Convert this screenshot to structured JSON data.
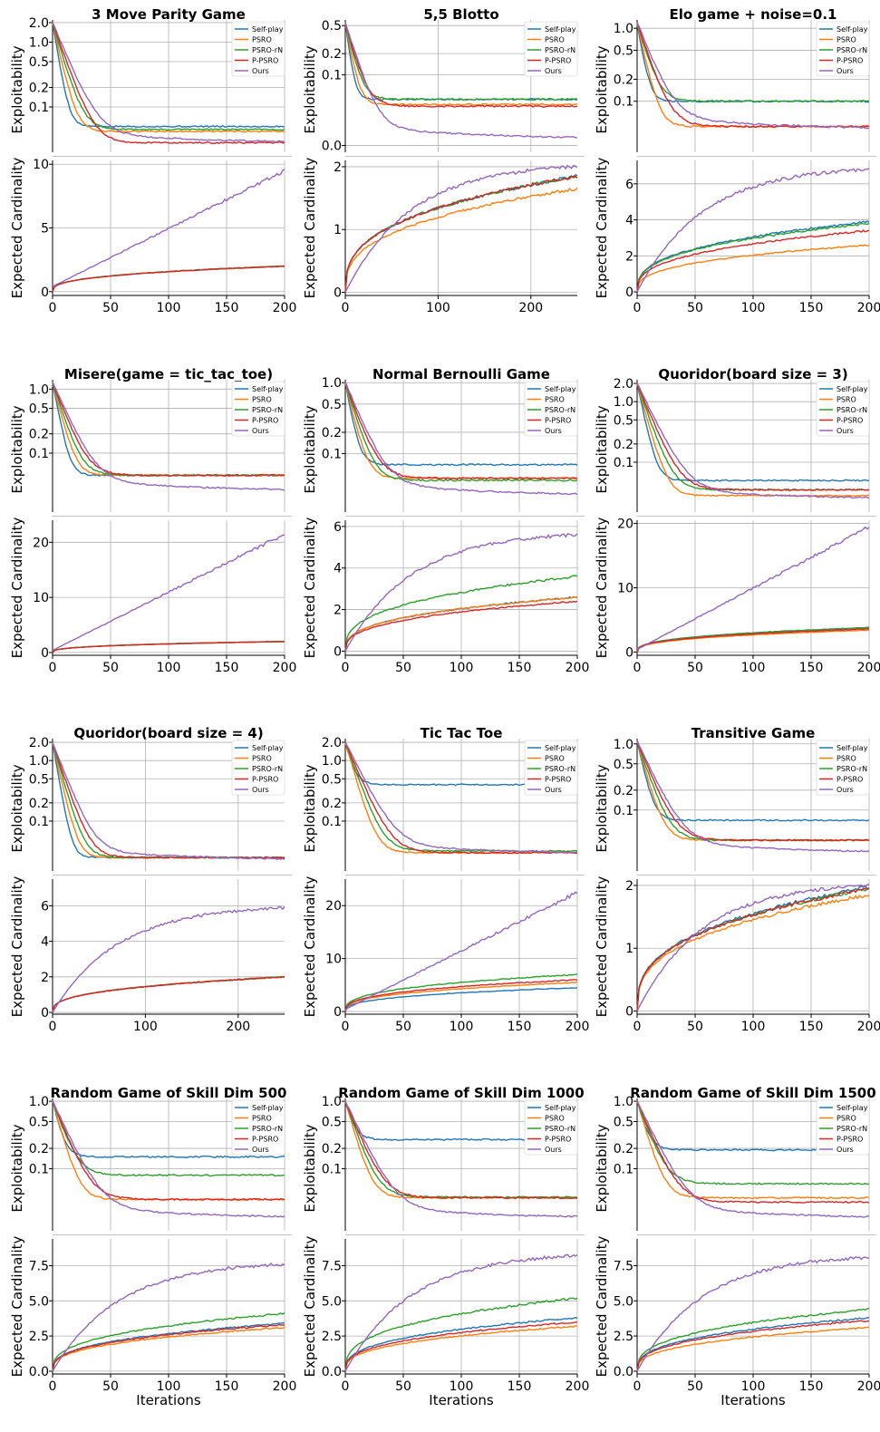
{
  "figure": {
    "x_label": "Iterations",
    "colors": {
      "Self-play": "#1f77b4",
      "PSRO": "#ff7f0e",
      "PSRO-rN": "#2ca02c",
      "P-PSRO": "#d62728",
      "Ours": "#9467bd"
    },
    "legend": [
      "Self-play",
      "PSRO",
      "PSRO-rN",
      "P-PSRO",
      "Ours"
    ],
    "top_ylabel": "Exploitability",
    "bottom_ylabel": "Expected Cardinality"
  },
  "chart_data": [
    {
      "type": "line",
      "title": "3 Move Parity Game",
      "xmax": 200,
      "xticks": [
        0,
        50,
        100,
        150,
        200
      ],
      "top": {
        "yticks": [
          "2.0",
          "1.0",
          "0.5",
          "0.2",
          "0.1"
        ],
        "tickvals": [
          2.0,
          1.0,
          0.5,
          0.2,
          0.1
        ],
        "ylim": [
          0.02,
          2.2
        ],
        "final": {
          "Self-play": 0.05,
          "PSRO": 0.042,
          "PSRO-rN": 0.045,
          "P-PSRO": 0.028,
          "Ours": 0.027
        }
      },
      "bottom": {
        "yticks": [
          "0",
          "5",
          "10"
        ],
        "tickvals": [
          0,
          5,
          10
        ],
        "ylim": [
          -0.3,
          10.3
        ],
        "final": {
          "Self-play": 2.0,
          "PSRO": 2.0,
          "PSRO-rN": 2.0,
          "P-PSRO": 2.0,
          "Ours": 9.5
        }
      }
    },
    {
      "type": "line",
      "title": "5,5 Blotto",
      "xmax": 250,
      "xticks": [
        0,
        100,
        200
      ],
      "top": {
        "yticks": [
          "0.5",
          "0.2",
          "0.1",
          "0.0"
        ],
        "tickvals": [
          0.5,
          0.2,
          0.1,
          0.01
        ],
        "ylim": [
          0.008,
          0.6
        ],
        "final": {
          "Self-play": 0.045,
          "PSRO": 0.038,
          "PSRO-rN": 0.045,
          "P-PSRO": 0.036,
          "Ours": 0.012
        }
      },
      "bottom": {
        "yticks": [
          "0",
          "1",
          "2"
        ],
        "tickvals": [
          0,
          1,
          2
        ],
        "ylim": [
          -0.05,
          2.1
        ],
        "final": {
          "Self-play": 1.85,
          "PSRO": 1.65,
          "PSRO-rN": 1.85,
          "P-PSRO": 1.85,
          "Ours": 2.0
        }
      }
    },
    {
      "type": "line",
      "title": "Elo game + noise=0.1",
      "xmax": 200,
      "xticks": [
        0,
        50,
        100,
        150,
        200
      ],
      "top": {
        "yticks": [
          "1.0",
          "0.5",
          "0.2",
          "0.1"
        ],
        "tickvals": [
          1.0,
          0.5,
          0.2,
          0.1
        ],
        "ylim": [
          0.02,
          1.3
        ],
        "final": {
          "Self-play": 0.1,
          "PSRO": 0.045,
          "PSRO-rN": 0.1,
          "P-PSRO": 0.045,
          "Ours": 0.04
        }
      },
      "bottom": {
        "yticks": [
          "0",
          "2",
          "4",
          "6"
        ],
        "tickvals": [
          0,
          2,
          4,
          6
        ],
        "ylim": [
          -0.2,
          7.3
        ],
        "final": {
          "Self-play": 3.9,
          "PSRO": 2.6,
          "PSRO-rN": 3.8,
          "P-PSRO": 3.4,
          "Ours": 6.8
        }
      }
    },
    {
      "type": "line",
      "title": "Misere(game = tic_tac_toe)",
      "xmax": 200,
      "xticks": [
        0,
        50,
        100,
        150,
        200
      ],
      "top": {
        "yticks": [
          "1.0",
          "0.5",
          "0.2",
          "0.1"
        ],
        "tickvals": [
          1.0,
          0.5,
          0.2,
          0.1
        ],
        "ylim": [
          0.012,
          1.4
        ],
        "final": {
          "Self-play": 0.045,
          "PSRO": 0.045,
          "PSRO-rN": 0.045,
          "P-PSRO": 0.045,
          "Ours": 0.025
        }
      },
      "bottom": {
        "yticks": [
          "0",
          "10",
          "20"
        ],
        "tickvals": [
          0,
          10,
          20
        ],
        "ylim": [
          -0.5,
          24
        ],
        "final": {
          "Self-play": 2.0,
          "PSRO": 2.0,
          "PSRO-rN": 2.0,
          "P-PSRO": 2.0,
          "Ours": 21.5
        }
      }
    },
    {
      "type": "line",
      "title": "Normal Bernoulli Game",
      "xmax": 200,
      "xticks": [
        0,
        50,
        100,
        150,
        200
      ],
      "top": {
        "yticks": [
          "1.0",
          "0.5",
          "0.2",
          "0.1"
        ],
        "tickvals": [
          1.0,
          0.5,
          0.2,
          0.1
        ],
        "ylim": [
          0.015,
          1.1
        ],
        "final": {
          "Self-play": 0.07,
          "PSRO": 0.045,
          "PSRO-rN": 0.042,
          "P-PSRO": 0.045,
          "Ours": 0.025
        }
      },
      "bottom": {
        "yticks": [
          "0",
          "2",
          "4",
          "6"
        ],
        "tickvals": [
          0,
          2,
          4,
          6
        ],
        "ylim": [
          -0.2,
          6.3
        ],
        "final": {
          "Self-play": 2.6,
          "PSRO": 2.6,
          "PSRO-rN": 3.6,
          "P-PSRO": 2.4,
          "Ours": 5.6
        }
      }
    },
    {
      "type": "line",
      "title": "Quoridor(board size = 3)",
      "xmax": 200,
      "xticks": [
        0,
        50,
        100,
        150,
        200
      ],
      "top": {
        "yticks": [
          "2.0",
          "1.0",
          "0.5",
          "0.2",
          "0.1"
        ],
        "tickvals": [
          2.0,
          1.0,
          0.5,
          0.2,
          0.1
        ],
        "ylim": [
          0.015,
          2.3
        ],
        "final": {
          "Self-play": 0.05,
          "PSRO": 0.028,
          "PSRO-rN": 0.035,
          "P-PSRO": 0.035,
          "Ours": 0.024
        }
      },
      "bottom": {
        "yticks": [
          "0",
          "10",
          "20"
        ],
        "tickvals": [
          0,
          10,
          20
        ],
        "ylim": [
          -0.5,
          20.5
        ],
        "final": {
          "Self-play": 3.8,
          "PSRO": 3.4,
          "PSRO-rN": 3.8,
          "P-PSRO": 3.6,
          "Ours": 19.5
        }
      }
    },
    {
      "type": "line",
      "title": "Quoridor(board size = 4)",
      "xmax": 250,
      "xticks": [
        0,
        100,
        200
      ],
      "top": {
        "yticks": [
          "2.0",
          "1.0",
          "0.5",
          "0.2",
          "0.1"
        ],
        "tickvals": [
          2.0,
          1.0,
          0.5,
          0.2,
          0.1
        ],
        "ylim": [
          0.015,
          2.3
        ],
        "final": {
          "Self-play": 0.025,
          "PSRO": 0.025,
          "PSRO-rN": 0.025,
          "P-PSRO": 0.025,
          "Ours": 0.022
        }
      },
      "bottom": {
        "yticks": [
          "0",
          "2",
          "4",
          "6"
        ],
        "tickvals": [
          0,
          2,
          4,
          6
        ],
        "ylim": [
          -0.1,
          7.5
        ],
        "final": {
          "Self-play": 2.0,
          "PSRO": 2.0,
          "PSRO-rN": 2.0,
          "P-PSRO": 2.0,
          "Ours": 5.9
        }
      }
    },
    {
      "type": "line",
      "title": "Tic Tac Toe",
      "xmax": 200,
      "xticks": [
        0,
        50,
        100,
        150,
        200
      ],
      "top": {
        "yticks": [
          "2.0",
          "1.0",
          "0.5",
          "0.2",
          "0.1"
        ],
        "tickvals": [
          2.0,
          1.0,
          0.5,
          0.2,
          0.1
        ],
        "ylim": [
          0.015,
          2.3
        ],
        "final": {
          "Self-play": 0.4,
          "PSRO": 0.03,
          "PSRO-rN": 0.032,
          "P-PSRO": 0.03,
          "Ours": 0.028
        }
      },
      "bottom": {
        "yticks": [
          "0",
          "10",
          "20"
        ],
        "tickvals": [
          0,
          10,
          20
        ],
        "ylim": [
          -0.5,
          25
        ],
        "final": {
          "Self-play": 4.5,
          "PSRO": 5.5,
          "PSRO-rN": 7.0,
          "P-PSRO": 6.0,
          "Ours": 22.5
        }
      }
    },
    {
      "type": "line",
      "title": "Transitive Game",
      "xmax": 200,
      "xticks": [
        0,
        50,
        100,
        150,
        200
      ],
      "top": {
        "yticks": [
          "1.0",
          "0.5",
          "0.2",
          "0.1"
        ],
        "tickvals": [
          1.0,
          0.5,
          0.2,
          0.1
        ],
        "ylim": [
          0.012,
          1.2
        ],
        "final": {
          "Self-play": 0.07,
          "PSRO": 0.035,
          "PSRO-rN": 0.035,
          "P-PSRO": 0.035,
          "Ours": 0.022
        }
      },
      "bottom": {
        "yticks": [
          "0",
          "1",
          "2"
        ],
        "tickvals": [
          0,
          1,
          2
        ],
        "ylim": [
          -0.05,
          2.1
        ],
        "final": {
          "Self-play": 1.98,
          "PSRO": 1.85,
          "PSRO-rN": 1.95,
          "P-PSRO": 1.95,
          "Ours": 2.0
        }
      }
    },
    {
      "type": "line",
      "title": "Random Game of Skill Dim 500",
      "xmax": 200,
      "xticks": [
        0,
        50,
        100,
        150,
        200
      ],
      "top": {
        "yticks": [
          "1.0",
          "0.5",
          "0.2",
          "0.1"
        ],
        "tickvals": [
          1.0,
          0.5,
          0.2,
          0.1
        ],
        "ylim": [
          0.012,
          1.1
        ],
        "final": {
          "Self-play": 0.15,
          "PSRO": 0.035,
          "PSRO-rN": 0.08,
          "P-PSRO": 0.035,
          "Ours": 0.018
        }
      },
      "bottom": {
        "yticks": [
          "0.0",
          "2.5",
          "5.0",
          "7.5"
        ],
        "tickvals": [
          0,
          2.5,
          5,
          7.5
        ],
        "ylim": [
          -0.2,
          9.4
        ],
        "final": {
          "Self-play": 3.4,
          "PSRO": 3.1,
          "PSRO-rN": 4.1,
          "P-PSRO": 3.3,
          "Ours": 7.6
        }
      }
    },
    {
      "type": "line",
      "title": "Random Game of Skill Dim 1000",
      "xmax": 200,
      "xticks": [
        0,
        50,
        100,
        150,
        200
      ],
      "top": {
        "yticks": [
          "1.0",
          "0.5",
          "0.2",
          "0.1"
        ],
        "tickvals": [
          1.0,
          0.5,
          0.2,
          0.1
        ],
        "ylim": [
          0.012,
          1.1
        ],
        "final": {
          "Self-play": 0.27,
          "PSRO": 0.037,
          "PSRO-rN": 0.038,
          "P-PSRO": 0.037,
          "Ours": 0.018
        }
      },
      "bottom": {
        "yticks": [
          "0.0",
          "2.5",
          "5.0",
          "7.5"
        ],
        "tickvals": [
          0,
          2.5,
          5,
          7.5
        ],
        "ylim": [
          -0.2,
          9.4
        ],
        "final": {
          "Self-play": 3.8,
          "PSRO": 3.2,
          "PSRO-rN": 5.2,
          "P-PSRO": 3.5,
          "Ours": 8.2
        }
      }
    },
    {
      "type": "line",
      "title": "Random Game of Skill Dim 1500",
      "xmax": 200,
      "xticks": [
        0,
        50,
        100,
        150,
        200
      ],
      "top": {
        "yticks": [
          "1.0",
          "0.5",
          "0.2",
          "0.1"
        ],
        "tickvals": [
          1.0,
          0.5,
          0.2,
          0.1
        ],
        "ylim": [
          0.012,
          1.1
        ],
        "final": {
          "Self-play": 0.19,
          "PSRO": 0.037,
          "PSRO-rN": 0.06,
          "P-PSRO": 0.032,
          "Ours": 0.018
        }
      },
      "bottom": {
        "yticks": [
          "0.0",
          "2.5",
          "5.0",
          "7.5"
        ],
        "tickvals": [
          0,
          2.5,
          5,
          7.5
        ],
        "ylim": [
          -0.2,
          9.4
        ],
        "final": {
          "Self-play": 3.8,
          "PSRO": 3.1,
          "PSRO-rN": 4.4,
          "P-PSRO": 3.6,
          "Ours": 8.1
        }
      }
    }
  ]
}
